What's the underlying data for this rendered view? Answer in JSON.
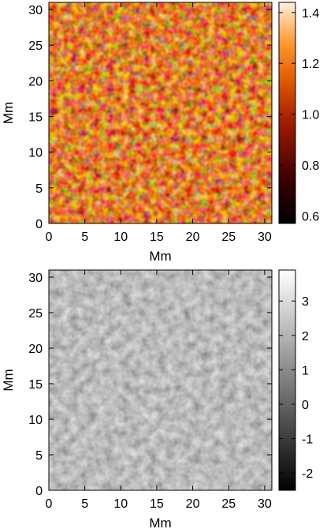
{
  "chart_data": [
    {
      "type": "heatmap",
      "colormap": "red-temperature",
      "colors": {
        "low": "#000000",
        "mid": "#c03000",
        "high": "#fff0e0"
      },
      "xlabel": "Mm",
      "ylabel": "Mm",
      "xlim": [
        0,
        31
      ],
      "ylim": [
        0,
        31
      ],
      "x_ticks": [
        "0",
        "5",
        "10",
        "15",
        "20",
        "25",
        "30"
      ],
      "y_ticks": [
        "0",
        "5",
        "10",
        "15",
        "20",
        "25",
        "30"
      ],
      "colorbar": {
        "range": [
          0.57,
          1.44
        ],
        "ticks": [
          "0.6",
          "0.8",
          "1.0",
          "1.2",
          "1.4"
        ]
      },
      "pattern": "granulation cells"
    },
    {
      "type": "heatmap",
      "colormap": "grayscale",
      "colors": {
        "low": "#000000",
        "high": "#ffffff"
      },
      "xlabel": "Mm",
      "ylabel": "Mm",
      "xlim": [
        0,
        31
      ],
      "ylim": [
        0,
        31
      ],
      "x_ticks": [
        "0",
        "5",
        "10",
        "15",
        "20",
        "25",
        "30"
      ],
      "y_ticks": [
        "0",
        "5",
        "10",
        "15",
        "20",
        "25",
        "30"
      ],
      "colorbar": {
        "range": [
          -2.5,
          3.9
        ],
        "ticks": [
          "-2",
          "-1",
          "0",
          "1",
          "2",
          "3"
        ]
      },
      "pattern": "granulation cells"
    }
  ]
}
